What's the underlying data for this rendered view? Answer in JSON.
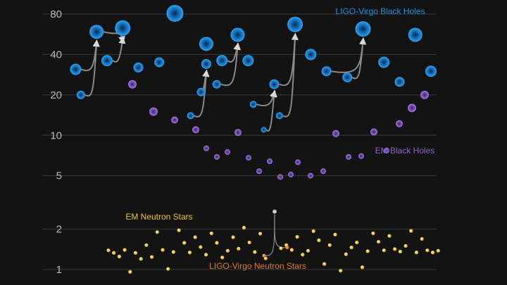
{
  "chart_data": {
    "type": "scatter",
    "title": "",
    "xlabel": "",
    "ylabel": "",
    "y_scale": "log",
    "ylim": [
      0.85,
      90
    ],
    "y_ticks": [
      1,
      2,
      5,
      10,
      20,
      40,
      80
    ],
    "grid": true,
    "colors": {
      "background": "#131313",
      "grid": "#3a3a3a",
      "tick_text": "#b9b9b9",
      "ligo_bh": "#1d8fe0",
      "em_bh": "#8e63c9",
      "em_ns": "#e8c52c",
      "ligo_ns": "#e07a23",
      "arrow": "#8a8a8a"
    },
    "labels": [
      {
        "series": "LIGO-Virgo Black Holes",
        "text": "LIGO-Virgo Black Holes"
      },
      {
        "series": "EM Black Holes",
        "text": "EM Black Holes"
      },
      {
        "series": "EM Neutron Stars",
        "text": "EM Neutron Stars"
      },
      {
        "series": "LIGO-Virgo Neutron Stars",
        "text": "LIGO-Virgo Neutron Stars"
      }
    ],
    "series": [
      {
        "name": "LIGO-Virgo Black Holes",
        "color": "#1d8fe0",
        "mergers": [
          {
            "x": 5,
            "m1": 31,
            "m2": 20,
            "final": 59
          },
          {
            "x": 25,
            "m1": 35,
            "m2": 30,
            "final": 63
          },
          {
            "x": 34,
            "m1": 81,
            "m2": 34,
            "final": 81
          },
          {
            "x": 41,
            "m1": 48,
            "m2": 14,
            "final": 20
          },
          {
            "x": 46,
            "m1": 36,
            "m2": 24,
            "final": 51
          },
          {
            "x": 52,
            "m1": 36,
            "m2": 24,
            "final": 17
          },
          {
            "x": 57,
            "m1": 67,
            "m2": 35,
            "final": 67
          },
          {
            "x": 62,
            "m1": 12,
            "m2": 14,
            "final": 11
          },
          {
            "x": 66,
            "m1": 33,
            "m2": 28,
            "final": 40
          },
          {
            "x": 73,
            "m1": 63,
            "m2": 26,
            "final": 27
          },
          {
            "x": 80,
            "m1": 34,
            "m2": 22,
            "final": 56
          },
          {
            "x": 86,
            "m1": 30,
            "m2": 30,
            "final": 30
          }
        ],
        "points": [
          {
            "x": 1,
            "y": 31,
            "r": 8
          },
          {
            "x": 2,
            "y": 20,
            "r": 6
          },
          {
            "x": 5,
            "y": 59,
            "r": 10
          },
          {
            "x": 7,
            "y": 36,
            "r": 8
          },
          {
            "x": 10,
            "y": 63,
            "r": 11
          },
          {
            "x": 13,
            "y": 32,
            "r": 7
          },
          {
            "x": 17,
            "y": 35,
            "r": 7
          },
          {
            "x": 20,
            "y": 81,
            "r": 12
          },
          {
            "x": 23,
            "y": 14,
            "r": 5
          },
          {
            "x": 25,
            "y": 21,
            "r": 6
          },
          {
            "x": 26,
            "y": 34,
            "r": 7
          },
          {
            "x": 26,
            "y": 48,
            "r": 10
          },
          {
            "x": 28,
            "y": 24,
            "r": 6
          },
          {
            "x": 29,
            "y": 36,
            "r": 8
          },
          {
            "x": 32,
            "y": 56,
            "r": 10
          },
          {
            "x": 34,
            "y": 36,
            "r": 8
          },
          {
            "x": 35,
            "y": 17,
            "r": 5
          },
          {
            "x": 37,
            "y": 11,
            "r": 4
          },
          {
            "x": 39,
            "y": 24,
            "r": 7
          },
          {
            "x": 40,
            "y": 14,
            "r": 5
          },
          {
            "x": 43,
            "y": 67,
            "r": 11
          },
          {
            "x": 46,
            "y": 40,
            "r": 8
          },
          {
            "x": 49,
            "y": 30,
            "r": 7
          },
          {
            "x": 53,
            "y": 27,
            "r": 7
          },
          {
            "x": 56,
            "y": 62,
            "r": 11
          },
          {
            "x": 60,
            "y": 35,
            "r": 8
          },
          {
            "x": 63,
            "y": 25,
            "r": 7
          },
          {
            "x": 66,
            "y": 56,
            "r": 10
          },
          {
            "x": 69,
            "y": 30,
            "r": 8
          }
        ]
      },
      {
        "name": "EM Black Holes",
        "color": "#8e63c9",
        "points": [
          {
            "x": 2,
            "y": 24
          },
          {
            "x": 4,
            "y": 15
          },
          {
            "x": 6,
            "y": 13
          },
          {
            "x": 8,
            "y": 11
          },
          {
            "x": 9,
            "y": 8
          },
          {
            "x": 10,
            "y": 6.9
          },
          {
            "x": 11,
            "y": 7.5
          },
          {
            "x": 12,
            "y": 10.5
          },
          {
            "x": 13,
            "y": 6.8
          },
          {
            "x": 14,
            "y": 5.4
          },
          {
            "x": 15,
            "y": 6.4
          },
          {
            "x": 16,
            "y": 4.9
          },
          {
            "x": 17,
            "y": 5.1
          },
          {
            "x": 50,
            "y": 6.3
          },
          {
            "x": 51,
            "y": 5
          },
          {
            "x": 52,
            "y": 5.4
          },
          {
            "x": 53,
            "y": 10.3
          },
          {
            "x": 54,
            "y": 6.9
          },
          {
            "x": 55,
            "y": 7
          },
          {
            "x": 56,
            "y": 10.6
          },
          {
            "x": 57,
            "y": 7.7
          },
          {
            "x": 58,
            "y": 12.2
          },
          {
            "x": 59,
            "y": 16
          },
          {
            "x": 60,
            "y": 20
          }
        ]
      },
      {
        "name": "EM Neutron Stars",
        "color": "#e8c52c",
        "points": [
          {
            "x": 1,
            "y": 1.39
          },
          {
            "x": 2,
            "y": 1.33
          },
          {
            "x": 3,
            "y": 1.25
          },
          {
            "x": 4,
            "y": 1.4
          },
          {
            "x": 5,
            "y": 0.96
          },
          {
            "x": 6,
            "y": 1.33
          },
          {
            "x": 7,
            "y": 1.2
          },
          {
            "x": 8,
            "y": 1.52
          },
          {
            "x": 9,
            "y": 1.24
          },
          {
            "x": 10,
            "y": 1.9
          },
          {
            "x": 11,
            "y": 1.4
          },
          {
            "x": 12,
            "y": 1.01
          },
          {
            "x": 13,
            "y": 1.35
          },
          {
            "x": 14,
            "y": 1.96
          },
          {
            "x": 15,
            "y": 1.58
          },
          {
            "x": 16,
            "y": 1.34
          },
          {
            "x": 17,
            "y": 1.74
          },
          {
            "x": 18,
            "y": 1.47
          },
          {
            "x": 19,
            "y": 1.29
          },
          {
            "x": 20,
            "y": 1.86
          },
          {
            "x": 21,
            "y": 1.58
          },
          {
            "x": 22,
            "y": 1.23
          },
          {
            "x": 23,
            "y": 1.38
          },
          {
            "x": 24,
            "y": 1.74
          },
          {
            "x": 25,
            "y": 1.43
          },
          {
            "x": 26,
            "y": 2.05
          },
          {
            "x": 27,
            "y": 1.59
          },
          {
            "x": 28,
            "y": 1.35
          },
          {
            "x": 29,
            "y": 1.85
          },
          {
            "x": 30,
            "y": 1.21
          },
          {
            "x": 31,
            "y": 1.44
          },
          {
            "x": 32,
            "y": 1.52
          },
          {
            "x": 33,
            "y": 1.4
          },
          {
            "x": 34,
            "y": 1.75
          },
          {
            "x": 35,
            "y": 1.29
          },
          {
            "x": 36,
            "y": 1.38
          },
          {
            "x": 37,
            "y": 1.93
          },
          {
            "x": 38,
            "y": 1.65
          },
          {
            "x": 39,
            "y": 1.1
          },
          {
            "x": 40,
            "y": 1.52
          },
          {
            "x": 41,
            "y": 1.82
          },
          {
            "x": 42,
            "y": 0.98
          },
          {
            "x": 43,
            "y": 1.3
          },
          {
            "x": 44,
            "y": 1.46
          },
          {
            "x": 45,
            "y": 1.59
          },
          {
            "x": 46,
            "y": 1.04
          },
          {
            "x": 47,
            "y": 1.37
          },
          {
            "x": 48,
            "y": 1.86
          },
          {
            "x": 49,
            "y": 1.61
          },
          {
            "x": 50,
            "y": 1.39
          },
          {
            "x": 51,
            "y": 1.78
          },
          {
            "x": 52,
            "y": 1.42
          },
          {
            "x": 53,
            "y": 1.36
          },
          {
            "x": 54,
            "y": 1.5
          },
          {
            "x": 55,
            "y": 1.94
          },
          {
            "x": 56,
            "y": 1.34
          },
          {
            "x": 57,
            "y": 1.69
          },
          {
            "x": 58,
            "y": 1.39
          },
          {
            "x": 59,
            "y": 1.34
          },
          {
            "x": 60,
            "y": 1.38
          }
        ]
      },
      {
        "name": "LIGO-Virgo Neutron Stars",
        "color": "#e07a23",
        "mergers": [
          {
            "m1": 1.46,
            "m2": 1.27,
            "final": 2.7
          }
        ],
        "points": [
          {
            "y": 1.27
          },
          {
            "y": 1.46
          }
        ]
      }
    ]
  }
}
